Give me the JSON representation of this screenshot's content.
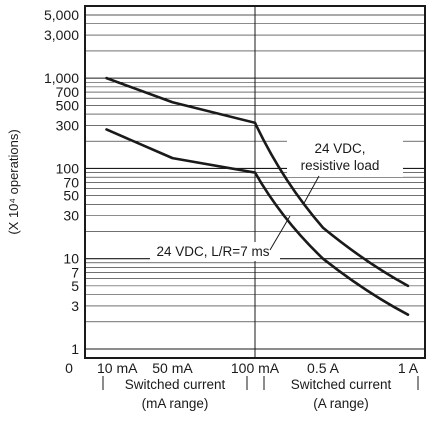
{
  "chart_data": {
    "type": "line",
    "y_scale": "log",
    "ylim": [
      1,
      5000
    ],
    "ylabel": "(X 10⁴ operations)",
    "y_ticks": [
      1,
      3,
      5,
      7,
      10,
      30,
      50,
      70,
      100,
      300,
      500,
      700,
      1000,
      3000,
      5000
    ],
    "y_tick_labels": [
      "1",
      "3",
      "5",
      "7",
      "10",
      "30",
      "50",
      "70",
      "100",
      "300",
      "500",
      "700",
      "1,000",
      "3,000",
      "5,000"
    ],
    "x_segments": [
      {
        "name": "mA range",
        "unit": "mA",
        "range": [
          0,
          100
        ],
        "tick_values": [
          0,
          10,
          50,
          100
        ],
        "tick_labels": [
          "0",
          "10 mA",
          "50 mA",
          "100 mA"
        ]
      },
      {
        "name": "A range",
        "unit": "A",
        "range": [
          0.1,
          1
        ],
        "tick_values": [
          0.5,
          1
        ],
        "tick_labels": [
          "0.5 A",
          "1 A"
        ]
      }
    ],
    "x_group_labels": [
      {
        "line1": "Switched current",
        "line2": "(mA range)"
      },
      {
        "line1": "Switched current",
        "line2": "(A range)"
      }
    ],
    "series": [
      {
        "name": "24 VDC, resistive load",
        "points": [
          [
            "10 mA",
            1000
          ],
          [
            "50 mA",
            540
          ],
          [
            "100 mA",
            320
          ],
          [
            "0.5 A",
            22
          ],
          [
            "1 A",
            5
          ]
        ]
      },
      {
        "name": "24 VDC, L/R=7 ms",
        "points": [
          [
            "10 mA",
            270
          ],
          [
            "50 mA",
            130
          ],
          [
            "100 mA",
            90
          ],
          [
            "0.5 A",
            10
          ],
          [
            "1 A",
            2.4
          ]
        ]
      }
    ],
    "grid": true
  }
}
